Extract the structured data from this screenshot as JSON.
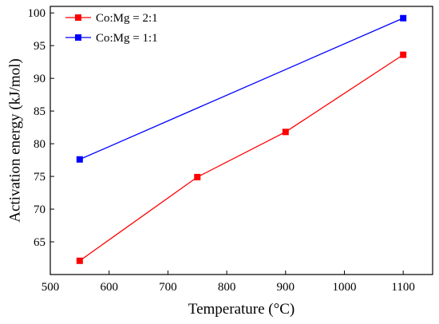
{
  "chart_data": {
    "type": "line",
    "title": "",
    "xlabel": "Temperature (°C)",
    "ylabel": "Activation energy (kJ/mol)",
    "xlim": [
      500,
      1150
    ],
    "ylim": [
      60,
      101
    ],
    "xticks": [
      500,
      600,
      700,
      800,
      900,
      1000,
      1100
    ],
    "yticks": [
      65,
      70,
      75,
      80,
      85,
      90,
      95,
      100
    ],
    "grid": false,
    "legend_position": "top-left",
    "series": [
      {
        "name": "Co:Mg = 2:1",
        "color": "#ff0000",
        "marker": "square",
        "x": [
          550,
          750,
          900,
          1100
        ],
        "y": [
          62.1,
          74.9,
          81.8,
          93.6
        ]
      },
      {
        "name": "Co:Mg = 1:1",
        "color": "#0000ff",
        "marker": "square",
        "x": [
          550,
          1100
        ],
        "y": [
          77.6,
          99.2
        ]
      }
    ]
  }
}
